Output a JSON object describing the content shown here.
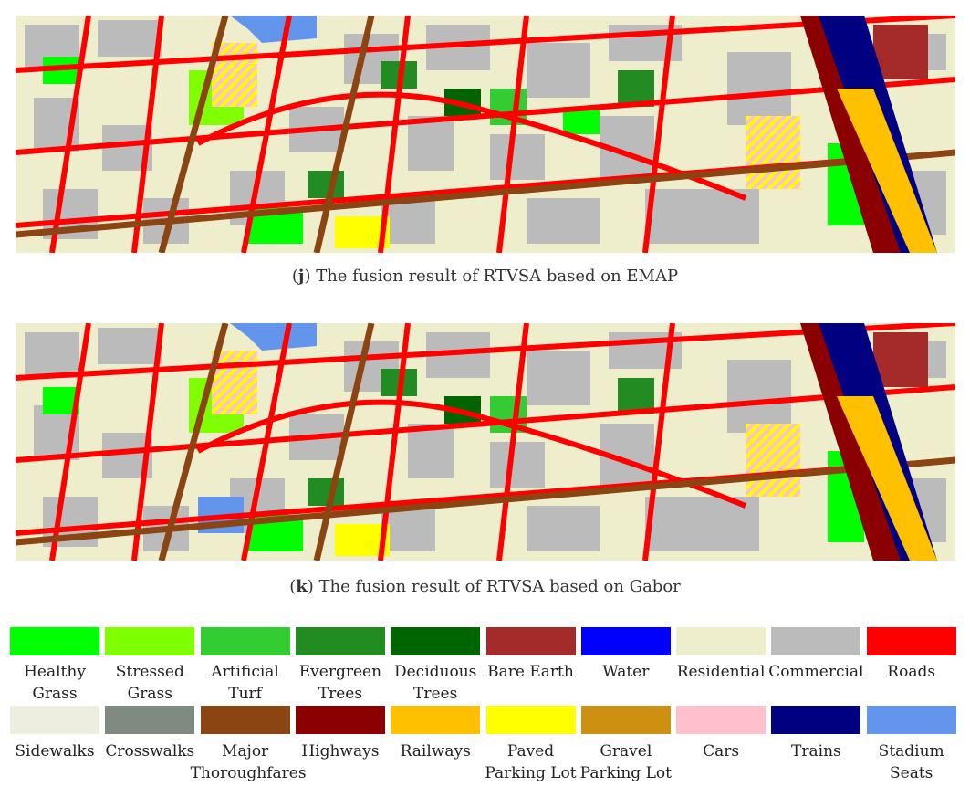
{
  "captions": {
    "j": {
      "letter": "j",
      "text": " The fusion result of RTVSA based on EMAP",
      "open": "(",
      "close": ")"
    },
    "k": {
      "letter": "k",
      "text": " The fusion result of RTVSA based on Gabor",
      "open": "(",
      "close": ")"
    }
  },
  "legend": {
    "row1": [
      {
        "line1": "Healthy",
        "line2": "Grass",
        "color": "#00ff00"
      },
      {
        "line1": "Stressed",
        "line2": "Grass",
        "color": "#80ff00"
      },
      {
        "line1": "Artificial",
        "line2": "Turf",
        "color": "#33cc33"
      },
      {
        "line1": "Evergreen",
        "line2": "Trees",
        "color": "#228b22"
      },
      {
        "line1": "Deciduous",
        "line2": "Trees",
        "color": "#006400"
      },
      {
        "line1": "Bare Earth",
        "line2": "",
        "color": "#a52a2a"
      },
      {
        "line1": "Water",
        "line2": "",
        "color": "#0000ff"
      },
      {
        "line1": "Residential",
        "line2": "",
        "color": "#eeeecc"
      },
      {
        "line1": "Commercial",
        "line2": "",
        "color": "#bbbbbb"
      },
      {
        "line1": "Roads",
        "line2": "",
        "color": "#ff0000"
      }
    ],
    "row2": [
      {
        "line1": "Sidewalks",
        "line2": "",
        "color": "#eeeee0"
      },
      {
        "line1": "Crosswalks",
        "line2": "",
        "color": "#7f8a80"
      },
      {
        "line1": "Major",
        "line2": "Thoroughfares",
        "color": "#8b4513"
      },
      {
        "line1": "Highways",
        "line2": "",
        "color": "#8b0000"
      },
      {
        "line1": "Railways",
        "line2": "",
        "color": "#ffc000"
      },
      {
        "line1": "Paved",
        "line2": "Parking Lot",
        "color": "#ffff00"
      },
      {
        "line1": "Gravel",
        "line2": "Parking Lot",
        "color": "#cd9010"
      },
      {
        "line1": "Cars",
        "line2": "",
        "color": "#ffc0cb"
      },
      {
        "line1": "Trains",
        "line2": "",
        "color": "#000080"
      },
      {
        "line1": "Stadium",
        "line2": "Seats",
        "color": "#6495ed"
      }
    ]
  }
}
